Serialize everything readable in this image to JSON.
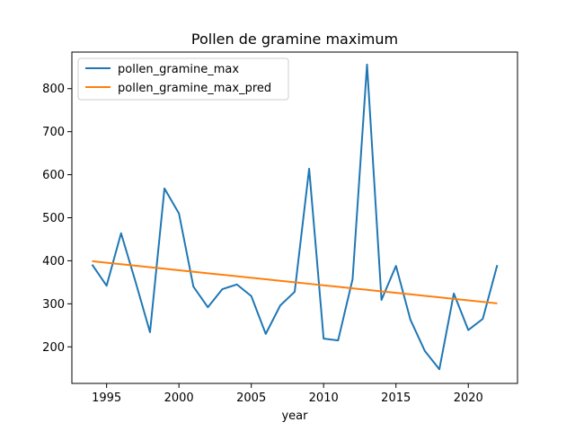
{
  "chart_data": {
    "type": "line",
    "title": "Pollen de gramine maximum",
    "xlabel": "year",
    "ylabel": "",
    "xlim": [
      1992.6,
      2023.4
    ],
    "ylim": [
      115,
      885
    ],
    "xticks": [
      1995,
      2000,
      2005,
      2010,
      2015,
      2020
    ],
    "yticks": [
      200,
      300,
      400,
      500,
      600,
      700,
      800
    ],
    "grid": false,
    "legend_position": "top-left",
    "x": [
      1994,
      1995,
      1996,
      1997,
      1998,
      1999,
      2000,
      2001,
      2002,
      2003,
      2004,
      2005,
      2006,
      2007,
      2008,
      2009,
      2010,
      2011,
      2012,
      2013,
      2014,
      2015,
      2016,
      2017,
      2018,
      2019,
      2020,
      2021,
      2022
    ],
    "series": [
      {
        "name": "pollen_gramine_max",
        "color": "#1f77b4",
        "values": [
          391,
          342,
          464,
          351,
          234,
          568,
          510,
          340,
          292,
          334,
          345,
          318,
          230,
          296,
          328,
          614,
          219,
          215,
          357,
          856,
          309,
          388,
          263,
          190,
          148,
          324,
          239,
          265,
          390
        ]
      },
      {
        "name": "pollen_gramine_max_pred",
        "color": "#ff7f0e",
        "values": [
          399,
          395.5,
          392,
          388.5,
          385,
          381.5,
          378,
          374.5,
          371,
          367.5,
          364,
          360.5,
          357,
          353.5,
          350,
          346.5,
          343,
          339.5,
          336,
          332.5,
          329,
          325.5,
          322,
          318.5,
          315,
          311.5,
          308,
          304.5,
          301
        ]
      }
    ]
  }
}
